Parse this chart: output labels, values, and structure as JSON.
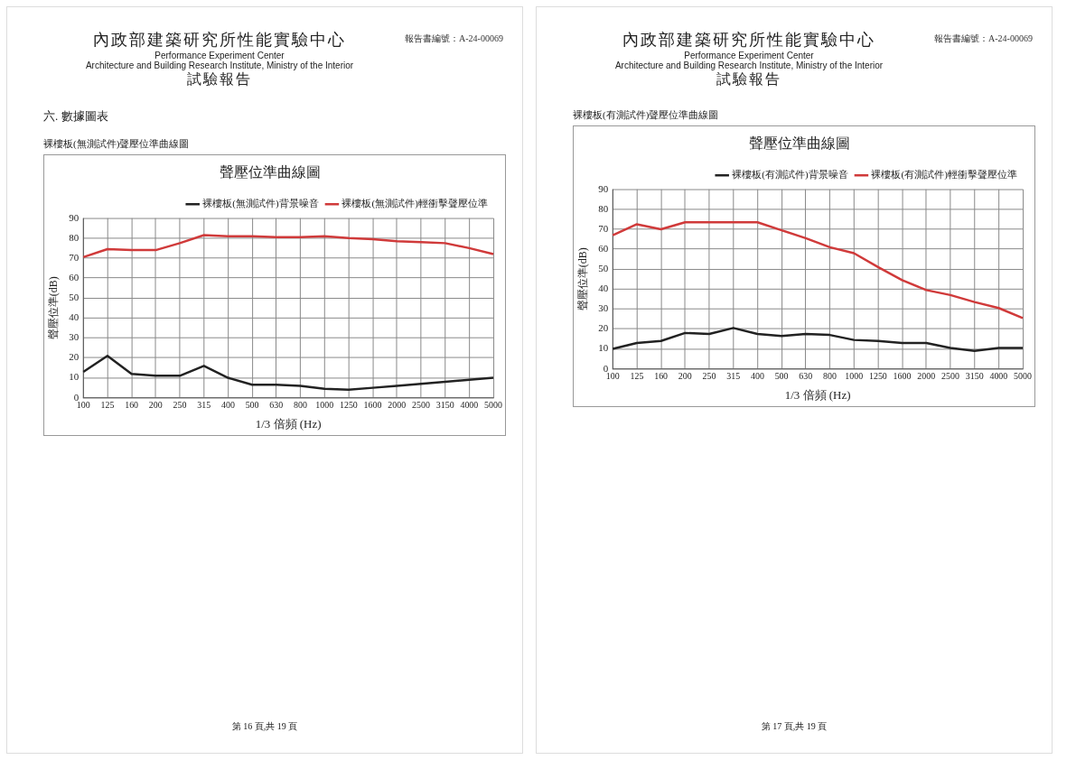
{
  "chart_data": [
    {
      "type": "line",
      "title": "聲壓位準曲線圖",
      "xlabel": "1/3 倍頻 (Hz)",
      "ylabel": "聲壓位準(dB)",
      "categories": [
        "100",
        "125",
        "160",
        "200",
        "250",
        "315",
        "400",
        "500",
        "630",
        "800",
        "1000",
        "1250",
        "1600",
        "2000",
        "2500",
        "3150",
        "4000",
        "5000"
      ],
      "series": [
        {
          "name": "裸樓板(無測試件)背景噪音",
          "color": "#222222",
          "values": [
            13,
            21,
            12,
            11,
            11,
            16,
            10,
            6.5,
            6.5,
            6,
            4.5,
            4,
            5,
            6,
            7,
            8,
            9,
            10
          ]
        },
        {
          "name": "裸樓板(無測試件)輕衝擊聲壓位準",
          "color": "#d03a3a",
          "values": [
            70.5,
            74.5,
            74,
            74,
            77.5,
            81.5,
            81,
            81,
            80.5,
            80.5,
            81,
            80,
            79.5,
            78.5,
            78,
            77.5,
            75,
            72
          ]
        }
      ],
      "ylim": [
        0,
        90
      ],
      "yticks": [
        0,
        10,
        20,
        30,
        40,
        50,
        60,
        70,
        80,
        90
      ],
      "grid": true,
      "legend": "top right",
      "marker": "none",
      "line_style": "solid",
      "annotations": [
        "內政部建築研究所性能實驗中心",
        "Performance Experiment Center",
        "Architecture and Building Research Institute, Ministry of the Interior",
        "試驗報告",
        "報告書編號：A-24-00069",
        "六. 數據圖表",
        "裸樓板(無測試件)聲壓位準曲線圖",
        "第 16 頁,共 19 頁"
      ]
    },
    {
      "type": "line",
      "title": "聲壓位準曲線圖",
      "xlabel": "1/3 倍頻 (Hz)",
      "ylabel": "聲壓位準(dB)",
      "categories": [
        "100",
        "125",
        "160",
        "200",
        "250",
        "315",
        "400",
        "500",
        "630",
        "800",
        "1000",
        "1250",
        "1600",
        "2000",
        "2500",
        "3150",
        "4000",
        "5000"
      ],
      "series": [
        {
          "name": "裸樓板(有測試件)背景噪音",
          "color": "#222222",
          "values": [
            10,
            13,
            14,
            18,
            17.5,
            20.5,
            17.5,
            16.5,
            17.5,
            17,
            14.5,
            14,
            13,
            13,
            10.5,
            9,
            10.5,
            10.5
          ]
        },
        {
          "name": "裸樓板(有測試件)輕衝擊聲壓位準",
          "color": "#d03a3a",
          "values": [
            67,
            72.5,
            70,
            73.5,
            73.5,
            73.5,
            73.5,
            69.5,
            65.5,
            61,
            58,
            51,
            44.5,
            39.5,
            37,
            33.5,
            30.5,
            25.5
          ]
        }
      ],
      "ylim": [
        0,
        90
      ],
      "yticks": [
        0,
        10,
        20,
        30,
        40,
        50,
        60,
        70,
        80,
        90
      ],
      "grid": true,
      "legend": "top right",
      "marker": "none",
      "line_style": "solid",
      "annotations": [
        "內政部建築研究所性能實驗中心",
        "Performance Experiment Center",
        "Architecture and Building Research Institute, Ministry of the Interior",
        "試驗報告",
        "報告書編號：A-24-00069",
        "裸樓板(有測試件)聲壓位準曲線圖",
        "第 17 頁,共 19 頁"
      ]
    }
  ]
}
